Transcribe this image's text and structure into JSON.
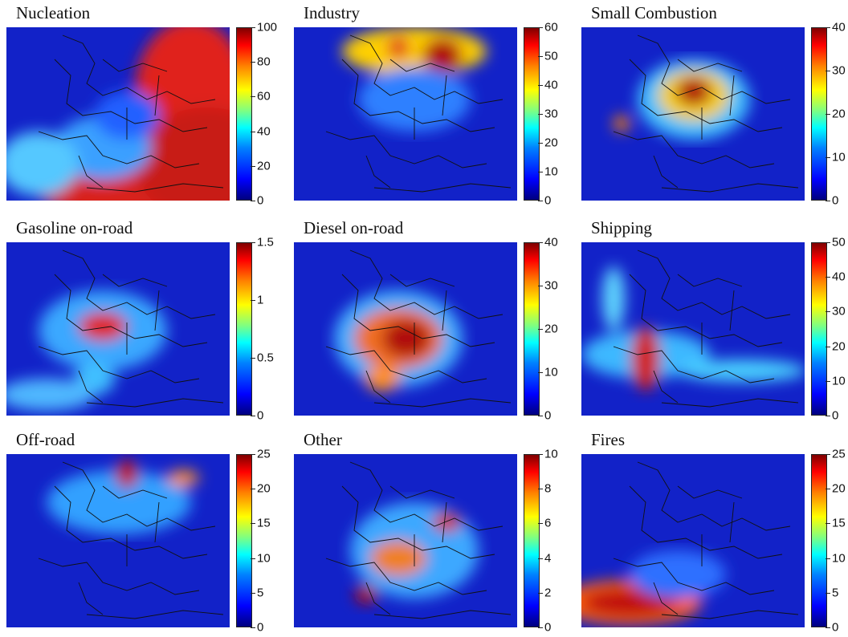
{
  "chart_data": [
    {
      "type": "heatmap",
      "title": "Nucleation",
      "colorbar_ticks": [
        "0",
        "20",
        "40",
        "60",
        "80",
        "100"
      ],
      "clim": [
        0,
        100
      ],
      "colormap": "jet"
    },
    {
      "type": "heatmap",
      "title": "Industry",
      "colorbar_ticks": [
        "0",
        "10",
        "20",
        "30",
        "40",
        "50",
        "60"
      ],
      "clim": [
        0,
        60
      ],
      "colormap": "jet"
    },
    {
      "type": "heatmap",
      "title": "Small Combustion",
      "colorbar_ticks": [
        "0",
        "10",
        "20",
        "30",
        "40"
      ],
      "clim": [
        0,
        40
      ],
      "colormap": "jet"
    },
    {
      "type": "heatmap",
      "title": "Gasoline on-road",
      "colorbar_ticks": [
        "0",
        "0.5",
        "1",
        "1.5"
      ],
      "clim": [
        0,
        1.5
      ],
      "colormap": "jet"
    },
    {
      "type": "heatmap",
      "title": "Diesel on-road",
      "colorbar_ticks": [
        "0",
        "10",
        "20",
        "30",
        "40"
      ],
      "clim": [
        0,
        40
      ],
      "colormap": "jet"
    },
    {
      "type": "heatmap",
      "title": "Shipping",
      "colorbar_ticks": [
        "0",
        "10",
        "20",
        "30",
        "40",
        "50"
      ],
      "clim": [
        0,
        50
      ],
      "colormap": "jet"
    },
    {
      "type": "heatmap",
      "title": "Off-road",
      "colorbar_ticks": [
        "0",
        "5",
        "10",
        "15",
        "20",
        "25"
      ],
      "clim": [
        0,
        25
      ],
      "colormap": "jet"
    },
    {
      "type": "heatmap",
      "title": "Other",
      "colorbar_ticks": [
        "0",
        "2",
        "4",
        "6",
        "8",
        "10"
      ],
      "clim": [
        0,
        10
      ],
      "colormap": "jet"
    },
    {
      "type": "heatmap",
      "title": "Fires",
      "colorbar_ticks": [
        "0",
        "5",
        "10",
        "15",
        "20",
        "25"
      ],
      "clim": [
        0,
        25
      ],
      "colormap": "jet"
    }
  ]
}
